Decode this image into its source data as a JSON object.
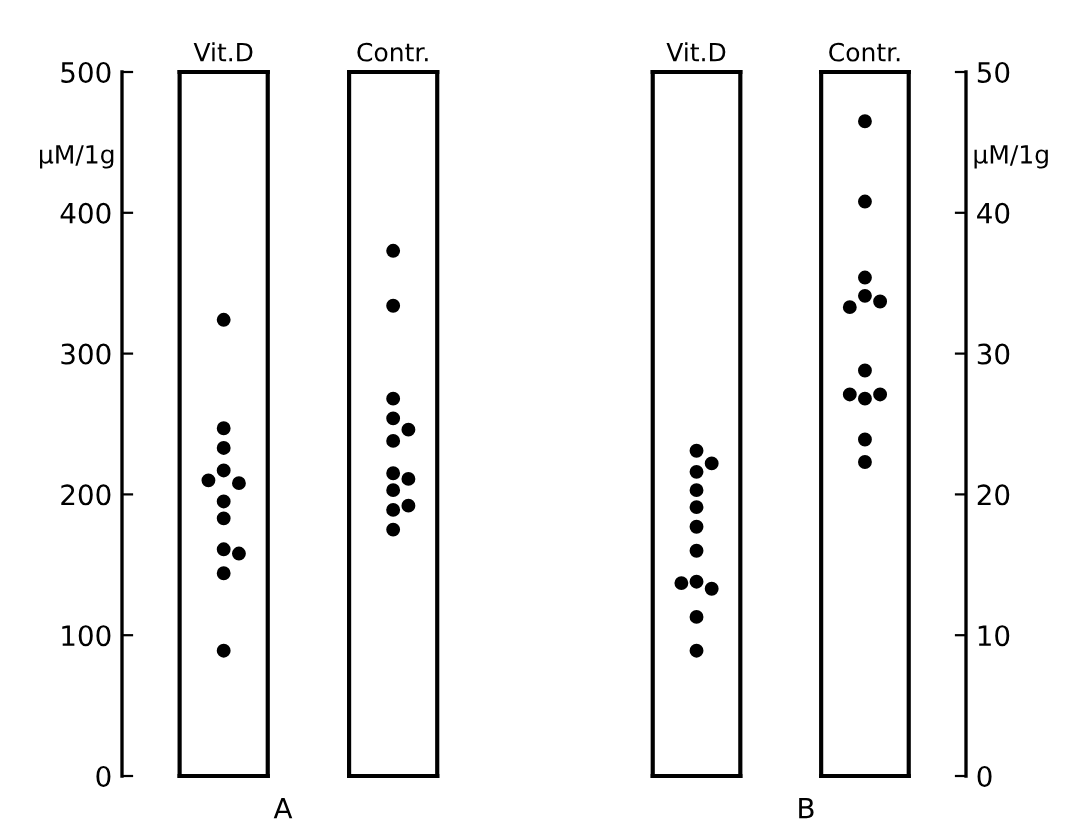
{
  "chart_data": [
    {
      "type": "scatter",
      "marker": "circle",
      "ylabel": "μM/1g",
      "annotations": [
        "A"
      ],
      "categories": [
        "Vit.D",
        "Contr."
      ],
      "ylim": [
        0,
        500
      ],
      "yticks": [
        0,
        100,
        200,
        300,
        400,
        500
      ],
      "series": [
        {
          "color": "#000000",
          "x": [
            "Vit.D",
            "Vit.D",
            "Vit.D",
            "Vit.D",
            "Vit.D",
            "Vit.D",
            "Vit.D",
            "Vit.D",
            "Vit.D",
            "Vit.D",
            "Vit.D",
            "Vit.D"
          ],
          "values": [
            324,
            247,
            233,
            217,
            208,
            210,
            195,
            183,
            161,
            158,
            144,
            89
          ]
        },
        {
          "color": "#000000",
          "x": [
            "Contr.",
            "Contr.",
            "Contr.",
            "Contr.",
            "Contr.",
            "Contr.",
            "Contr.",
            "Contr.",
            "Contr.",
            "Contr.",
            "Contr.",
            "Contr."
          ],
          "values": [
            373,
            334,
            268,
            254,
            246,
            238,
            215,
            211,
            203,
            189,
            192,
            175
          ]
        }
      ]
    },
    {
      "type": "scatter",
      "marker": "circle",
      "y2label": "μM/1g",
      "annotations": [
        "B"
      ],
      "categories": [
        "Vit.D",
        "Contr."
      ],
      "y2lim": [
        0,
        50
      ],
      "y2ticks": [
        0,
        10,
        20,
        30,
        40,
        50
      ],
      "series": [
        {
          "color": "#000000",
          "axis": "y2",
          "x": [
            "Vit.D",
            "Vit.D",
            "Vit.D",
            "Vit.D",
            "Vit.D",
            "Vit.D",
            "Vit.D",
            "Vit.D",
            "Vit.D",
            "Vit.D",
            "Vit.D",
            "Vit.D"
          ],
          "values": [
            23.1,
            21.6,
            22.2,
            20.3,
            19.1,
            17.7,
            16.0,
            13.8,
            13.3,
            13.7,
            11.3,
            8.9
          ]
        },
        {
          "color": "#000000",
          "axis": "y2",
          "x": [
            "Contr.",
            "Contr.",
            "Contr.",
            "Contr.",
            "Contr.",
            "Contr.",
            "Contr.",
            "Contr.",
            "Contr.",
            "Contr.",
            "Contr.",
            "Contr."
          ],
          "values": [
            46.5,
            40.8,
            35.4,
            34.1,
            33.7,
            33.3,
            28.8,
            26.8,
            27.1,
            27.1,
            23.9,
            22.3
          ]
        }
      ]
    }
  ]
}
